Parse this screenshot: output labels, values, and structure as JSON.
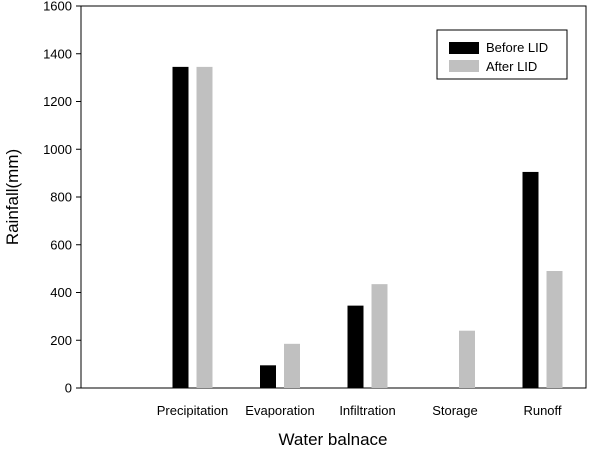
{
  "chart_data": {
    "type": "bar",
    "title": "",
    "xlabel": "Water balnace",
    "ylabel": "Rainfall(mm)",
    "ylim": [
      0,
      1600
    ],
    "yticks": [
      0,
      200,
      400,
      600,
      800,
      1000,
      1200,
      1400,
      1600
    ],
    "categories": [
      "Precipitation",
      "Evaporation",
      "Infiltration",
      "Storage",
      "Runoff"
    ],
    "series": [
      {
        "name": "Before LID",
        "values": [
          1345,
          95,
          345,
          0,
          905
        ],
        "color": "#000000"
      },
      {
        "name": "After LID",
        "values": [
          1345,
          185,
          435,
          240,
          490
        ],
        "color": "#c0c0c0"
      }
    ],
    "grid": false,
    "legend_position": "top-right"
  }
}
